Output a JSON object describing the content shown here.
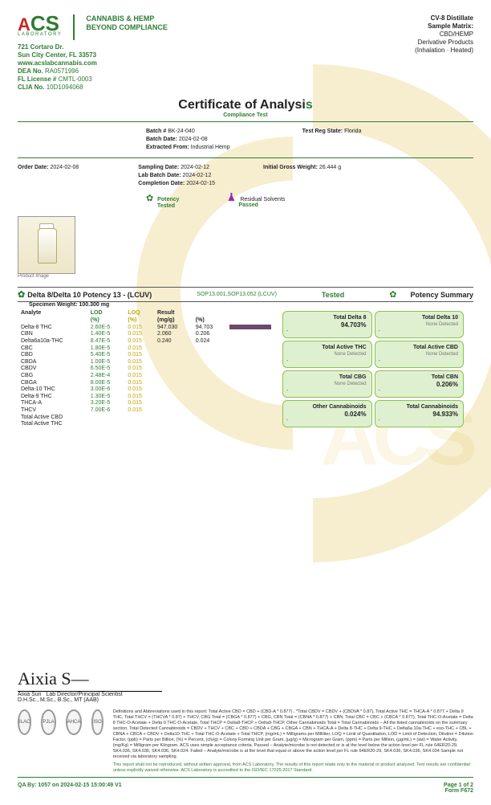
{
  "lab": {
    "name_a": "A",
    "name_cs": "CS",
    "laboratory": "LABORATORY",
    "tag1": "CANNABIS & HEMP",
    "tag2": "BEYOND COMPLIANCE",
    "addr1": "721 Cortaro Dr.",
    "addr2": "Sun City Center, FL 33573",
    "url": "www.acslabcannabis.com",
    "dea_lbl": "DEA No.",
    "dea": "RA0571996",
    "fl_lbl": "FL License #",
    "fl": "CMTL-0003",
    "clia_lbl": "CLIA No.",
    "clia": "10D1094068"
  },
  "sample": {
    "title": "CV-8 Distillate",
    "matrix_lbl": "Sample Matrix:",
    "matrix": "CBD/HEMP",
    "deriv": "Derivative Products",
    "method": "(Inhalation · Heated)"
  },
  "coa": {
    "title_a": "Certificate of Analysi",
    "title_b": "s",
    "sub": "Compliance Test"
  },
  "batch": {
    "batch_lbl": "Batch #",
    "batch": "BK-24-040",
    "batch_date_lbl": "Batch Date:",
    "batch_date": "2024-02-08",
    "extract_lbl": "Extracted From:",
    "extract": "Industrial Hemp",
    "reg_lbl": "Test Reg State:",
    "reg": "Florida"
  },
  "order": {
    "order_lbl": "Order Date:",
    "order": "2024-02-08",
    "sampling_lbl": "Sampling Date:",
    "sampling": "2024-02-12",
    "labbatch_lbl": "Lab Batch Date:",
    "labbatch": "2024-02-12",
    "completion_lbl": "Completion Date:",
    "completion": "2024-02-15",
    "igw_lbl": "Initial Gross Weight:",
    "igw": "26.444 g"
  },
  "status": {
    "potency_lbl": "Potency",
    "tested": "Tested",
    "residual_lbl": "Residual Solvents",
    "passed": "Passed"
  },
  "product_caption": "Product Image",
  "potency_section": {
    "title": "Delta 8/Delta 10 Potency 13 - (LCUV)",
    "sop_a": "SOP",
    "sop_b": "13.001,SOP13.052 (LCUV)",
    "tested": "Tested",
    "ps_title": "Potency Summary",
    "spec_wt_lbl": "Specimen Weight:",
    "spec_wt": "100.300 mg"
  },
  "columns": {
    "analyte": "Analyte",
    "lod": "LOD",
    "loq": "LOQ",
    "result": "Result",
    "pct": "",
    "lod_unit": "(%)",
    "loq_unit": "(%)",
    "result_unit": "(mg/g)",
    "pct_unit": "(%)"
  },
  "rows": [
    {
      "a": "Delta-8 THC",
      "lod": "2.60E-5",
      "loq": "0.015",
      "r": "947.030",
      "p": "94.703",
      "bar": 100
    },
    {
      "a": "CBN",
      "lod": "1.40E-5",
      "loq": "0.015",
      "r": "2.060",
      "p": "0.206",
      "bar": 0
    },
    {
      "a": "Delta6a10a-THC",
      "lod": "8.47E-5",
      "loq": "0.015",
      "r": "0.240",
      "p": "0.024",
      "bar": 0
    },
    {
      "a": "CBC",
      "lod": "1.80E-5",
      "loq": "0.015",
      "r": "<LOQ",
      "p": "<LOQ",
      "bar": 0
    },
    {
      "a": "CBD",
      "lod": "5.40E-5",
      "loq": "0.015",
      "r": "<LOQ",
      "p": "<LOQ",
      "bar": 0
    },
    {
      "a": "CBDA",
      "lod": "1.00E-5",
      "loq": "0.015",
      "r": "<LOQ",
      "p": "<LOQ",
      "bar": 0
    },
    {
      "a": "CBDV",
      "lod": "6.50E-5",
      "loq": "0.015",
      "r": "<LOQ",
      "p": "<LOQ",
      "bar": 0
    },
    {
      "a": "CBG",
      "lod": "2.48E-4",
      "loq": "0.015",
      "r": "<LOQ",
      "p": "<LOQ",
      "bar": 0
    },
    {
      "a": "CBGA",
      "lod": "8.00E-5",
      "loq": "0.015",
      "r": "<LOQ",
      "p": "<LOQ",
      "bar": 0
    },
    {
      "a": "Delta-10 THC",
      "lod": "3.00E-6",
      "loq": "0.015",
      "r": "<LOQ",
      "p": "<LOQ",
      "bar": 0
    },
    {
      "a": "Delta-9 THC",
      "lod": "1.30E-5",
      "loq": "0.015",
      "r": "<LOQ",
      "p": "<LOQ",
      "bar": 0
    },
    {
      "a": "THCA-A",
      "lod": "3.20E-5",
      "loq": "0.015",
      "r": "<LOQ",
      "p": "<LOQ",
      "bar": 0
    },
    {
      "a": "THCV",
      "lod": "7.00E-6",
      "loq": "0.015",
      "r": "<LOQ",
      "p": "<LOQ",
      "bar": 0
    },
    {
      "a": "Total Active CBD",
      "lod": "",
      "loq": "",
      "r": "<LOQ",
      "p": "<LOQ",
      "bar": 0
    },
    {
      "a": "Total Active THC",
      "lod": "",
      "loq": "",
      "r": "<LOQ",
      "p": "<LOQ",
      "bar": 0
    }
  ],
  "summary": [
    {
      "k": "Total Delta 8",
      "v": "94.703%",
      "nd": ""
    },
    {
      "k": "Total Delta 10",
      "v": "",
      "nd": "None Detected"
    },
    {
      "k": "Total Active THC",
      "v": "",
      "nd": "None Detected"
    },
    {
      "k": "Total Active CBD",
      "v": "",
      "nd": "None Detected"
    },
    {
      "k": "Total CBG",
      "v": "",
      "nd": "None Detected"
    },
    {
      "k": "Total CBN",
      "v": "0.206%",
      "nd": ""
    },
    {
      "k": "Other Cannabinoids",
      "v": "0.024%",
      "nd": ""
    },
    {
      "k": "Total Cannabinoids",
      "v": "94.933%",
      "nd": ""
    }
  ],
  "sig": {
    "scribble": "Aixia S—",
    "name": "Aixia Sun",
    "role": "Lab Director/Principal Scientist",
    "creds": "D.H.Sc., M.Sc., B.Sc., MT (AAB)"
  },
  "fine": {
    "text": "Definitions and Abbreviations used in this report: Total Active CBD = CBD + (CBD-A * 0.877) , *Total CBDV = CBDV + (CBDVA * 0.87), Total Active THC = THCA-A * 0.877 + Delta 9 THC, Total THCV = (THCVA * 0.87) + THCV, CBG Total = (CBGA * 0.877) + CBG, CBN Total = (CBNA * 0.877) + CBN, Total CBC = CBC + (CBCA * 0.877), Total THC-O-Acetate = Delta 8 THC-O-Acetate + Delta 9 THC-O-Acetate, Total THCP = Delta8-THCP + Delta9-THCP, Other Cannabinoids Total = Total Cannabinoids – All the listed cannabinoids on the summary section, Total Detected Cannabinoids = CBDV + THCV + CBC + CBD + CBDA + CBG + CBGA + CBN + THCA-A + Delta 8-THC + Delta 9-THC + Delta6a 10a-THC + exo-THC + CBL + CBNA + CBCA + CBDV + Delta10-THC + Total THC-O-Acetate + Total THCP, (mg/mL) = Milligrams per Milliliter, LOQ = Limit of Quantitation, LOD = Limit of Detection, Dilution = Dilution Factor, (ppb) = Parts per Billion, (%) = Percent, (cfu/g) = Colony Forming Unit per Gram, (µg/g) = Microgram per Gram, (ppm) = Parts per Million, (µg/mL) = (aw) = Water Activity, (mg/Kg) = Milligram per Kilogram. ACS uses simple acceptance criteria. Passed – Analyte/microbe is not detected or is at the level below the action level per FL rule 64ER20-29, SK4.036, SK4.036, SK4.036, SK4.024. Failed – Analyte/microbe is at the level that equal or above the action level per FL rule 64ER20-29, SK4.036, SK4.036, SK4.034 Sample not received via laboratory sampling.",
    "disclaimer": "This report shall not be reproduced, without written approval, from ACS Laboratory. The results of this report relate only to the material or product analyzed. Test results are confidential unless explicitly waived otherwise. ACS Laboratory is accredited to the ISO/IEC 17025:2017 Standard."
  },
  "footer": {
    "qa": "QA By: 1057 on 2024-02-15 15:00:49 V1",
    "page": "Page 1 of 2",
    "form": "Form F672"
  },
  "badges": {
    "b1": "ILAC",
    "b2": "PJLA",
    "b3": "AHCA",
    "b4": "ISO"
  }
}
